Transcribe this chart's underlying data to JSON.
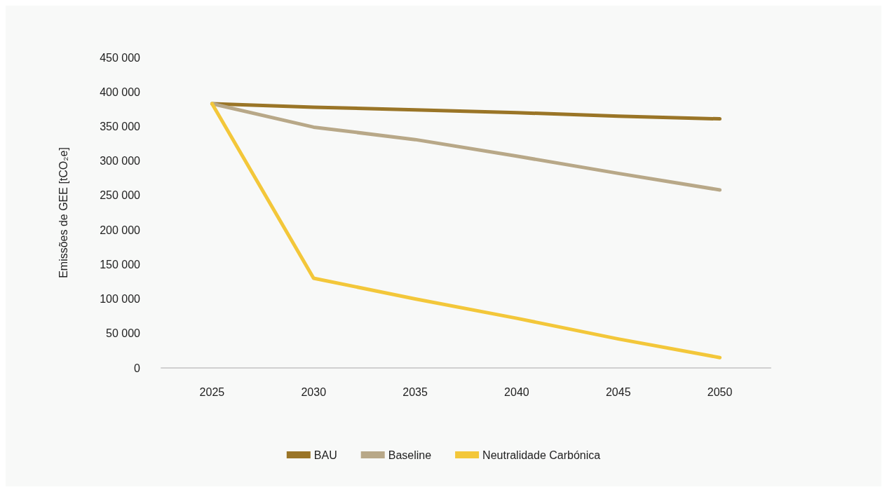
{
  "chart_data": {
    "type": "line",
    "ylabel": "Emissões de GEE [tCO₂e]",
    "categories": [
      "2025",
      "2030",
      "2035",
      "2040",
      "2045",
      "2050"
    ],
    "series": [
      {
        "name": "BAU",
        "color": "#9a7527",
        "values": [
          383000,
          378000,
          374000,
          370000,
          365000,
          361000
        ]
      },
      {
        "name": "Baseline",
        "color": "#b8a888",
        "values": [
          383000,
          349000,
          331000,
          307000,
          282000,
          258000
        ]
      },
      {
        "name": "Neutralidade Carbónica",
        "color": "#f3c73a",
        "values": [
          383000,
          130000,
          100000,
          72000,
          42000,
          15000
        ]
      }
    ],
    "ylim": [
      0,
      450000
    ],
    "yticks": [
      {
        "value": 0,
        "label": "0"
      },
      {
        "value": 50000,
        "label": "50 000"
      },
      {
        "value": 100000,
        "label": "100 000"
      },
      {
        "value": 150000,
        "label": "150 000"
      },
      {
        "value": 200000,
        "label": "200 000"
      },
      {
        "value": 250000,
        "label": "250 000"
      },
      {
        "value": 300000,
        "label": "300 000"
      },
      {
        "value": 350000,
        "label": "350 000"
      },
      {
        "value": 400000,
        "label": "400 000"
      },
      {
        "value": 450000,
        "label": "450 000"
      }
    ],
    "grid": false,
    "legend": "bottom",
    "marker": "none",
    "line_style": "solid"
  }
}
